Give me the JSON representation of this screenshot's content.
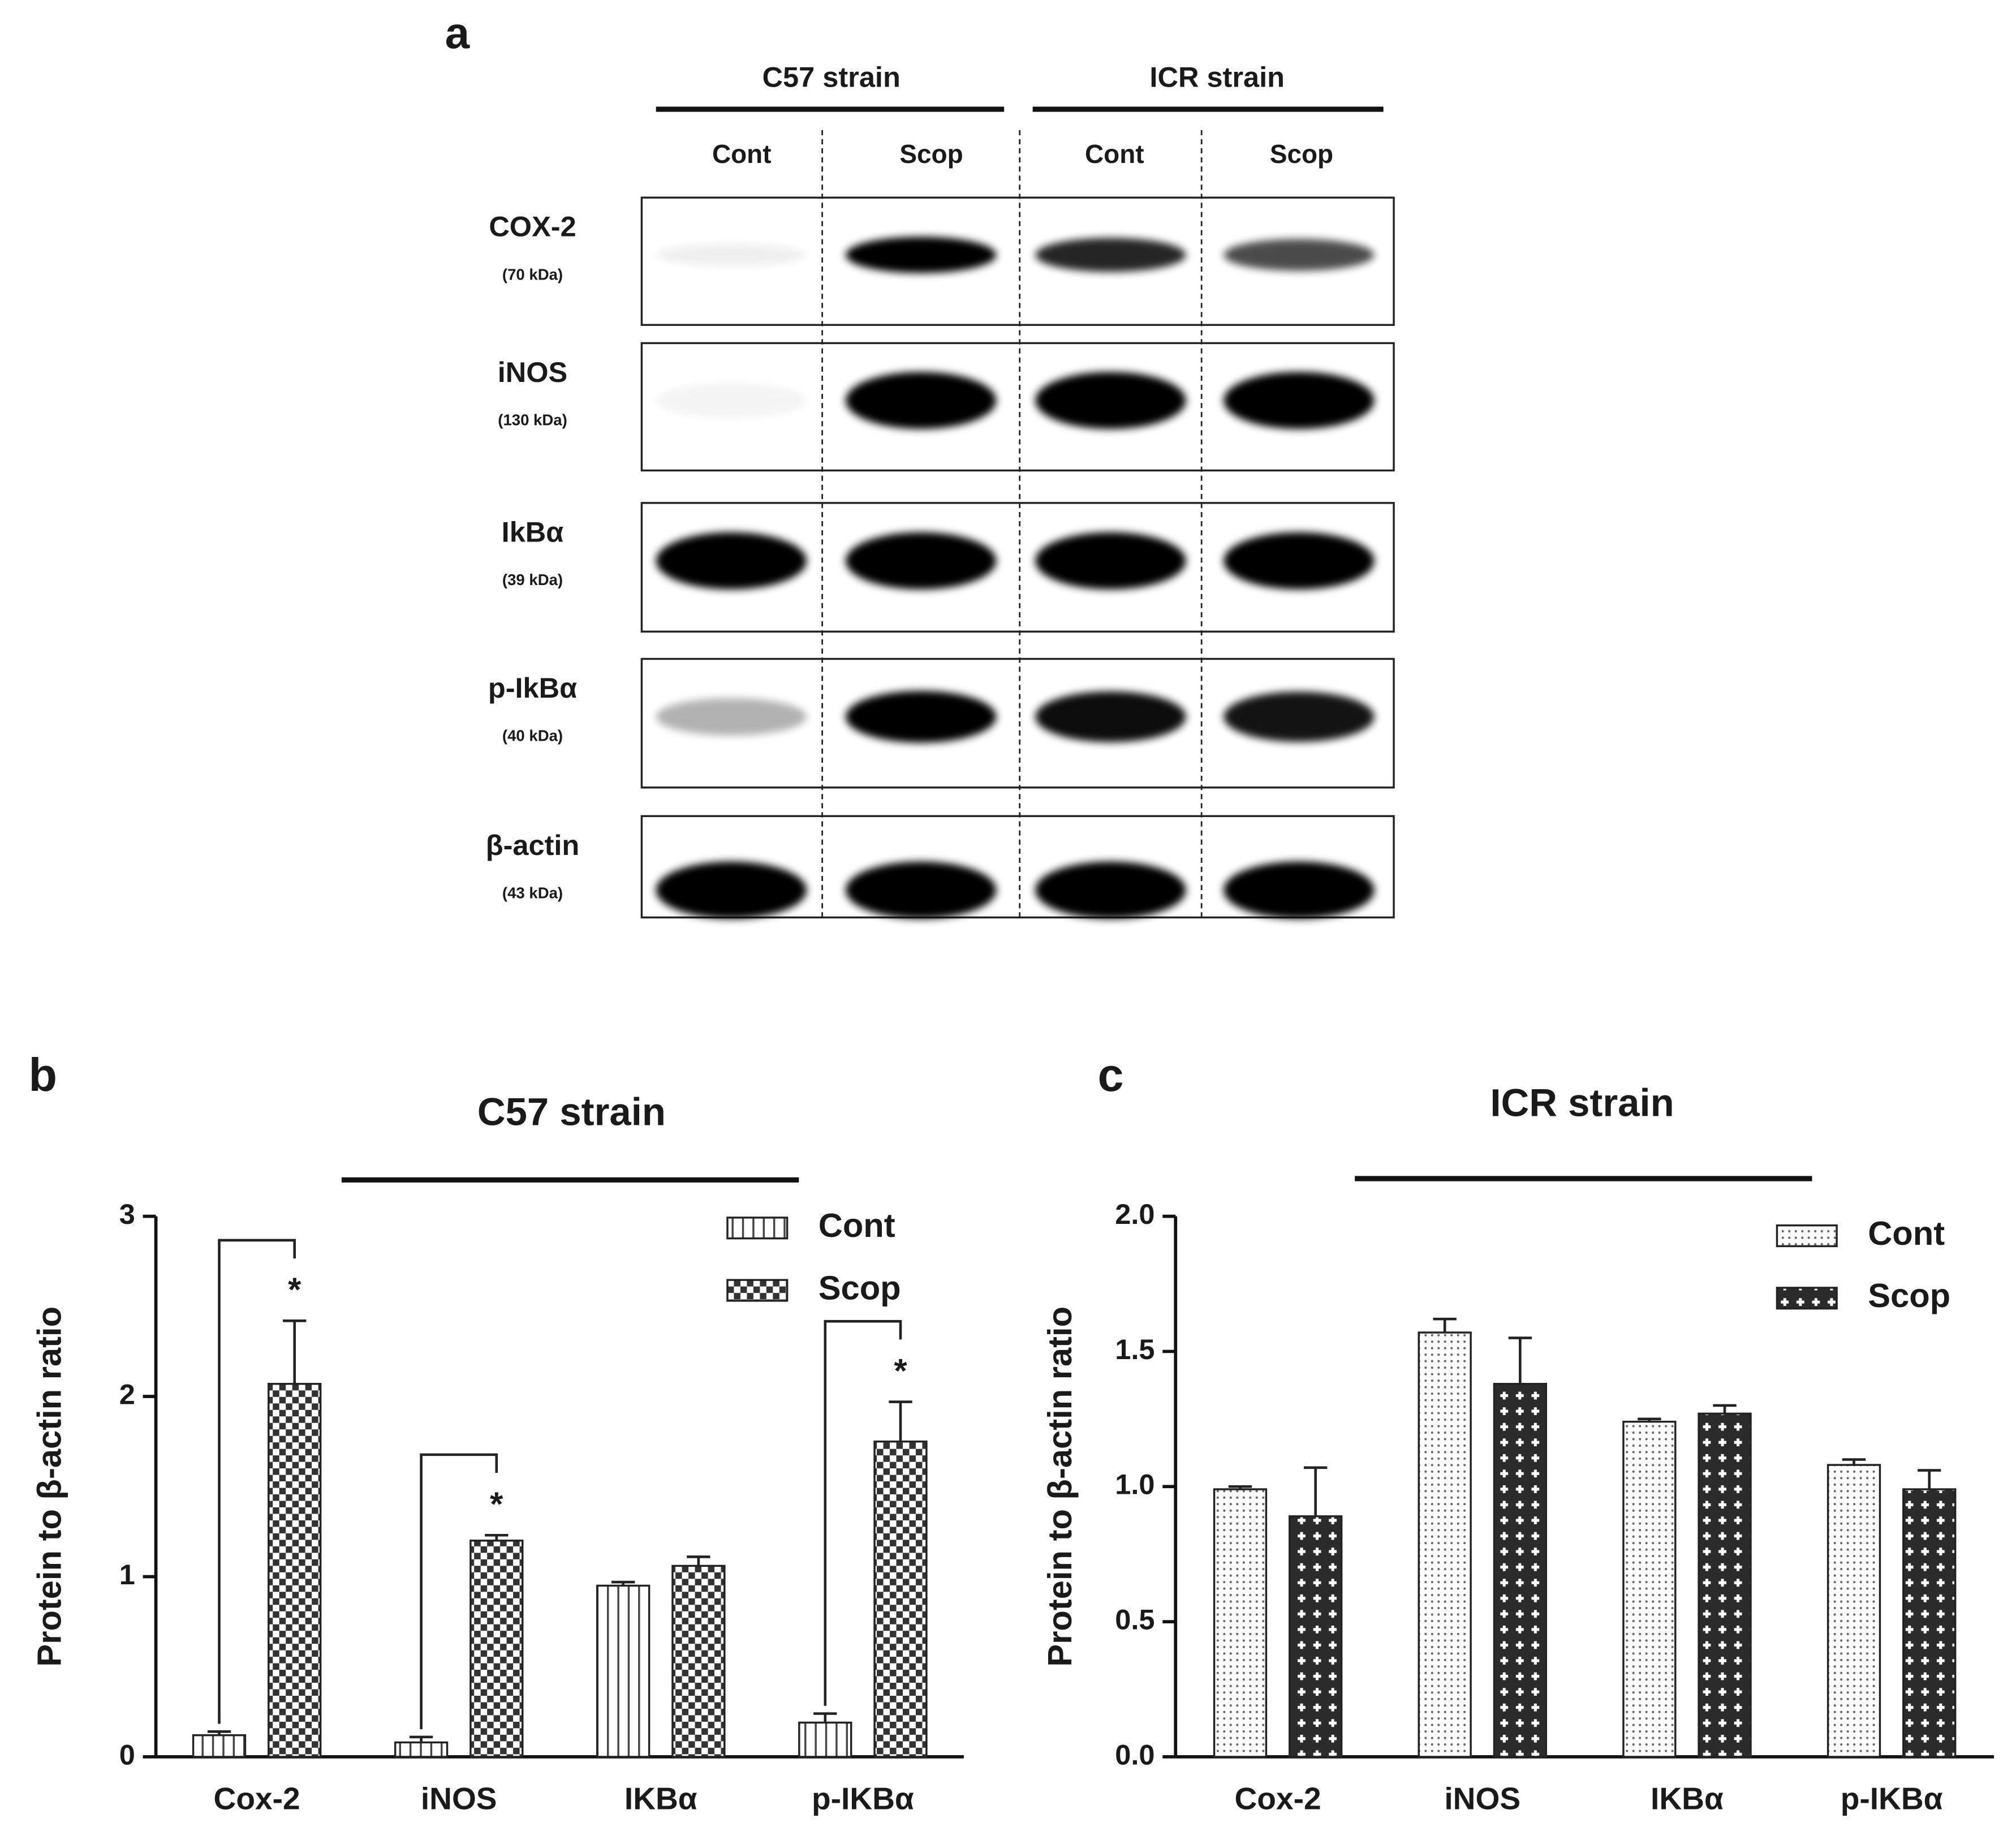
{
  "blot": {
    "panel": "a",
    "groups": [
      "C57 strain",
      "ICR strain"
    ],
    "lanes": [
      "Cont",
      "Scop",
      "Cont",
      "Scop"
    ],
    "rows": [
      {
        "protein": "COX-2",
        "size": "(70 kDa)"
      },
      {
        "protein": "iNOS",
        "size": "(130 kDa)"
      },
      {
        "protein": "IkBα",
        "size": "(39 kDa)"
      },
      {
        "protein": "p-IkBα",
        "size": "(40 kDa)"
      },
      {
        "protein": "β-actin",
        "size": "(43 kDa)"
      }
    ]
  },
  "chart_data": [
    {
      "type": "bar",
      "panel": "b",
      "title": "C57 strain",
      "y_label": "Protein to β-actin ratio",
      "categories": [
        "Cox-2",
        "iNOS",
        "IKBα",
        "p-IKBα"
      ],
      "series": [
        {
          "name": "Cont",
          "pattern": "vertical-stripes",
          "values": [
            0.12,
            0.08,
            0.95,
            0.19
          ],
          "errors": [
            0.02,
            0.03,
            0.02,
            0.05
          ]
        },
        {
          "name": "Scop",
          "pattern": "checker",
          "values": [
            2.07,
            1.2,
            1.06,
            1.75
          ],
          "errors": [
            0.35,
            0.03,
            0.05,
            0.22
          ]
        }
      ],
      "significance": [
        "*",
        "*",
        null,
        "*"
      ],
      "ylim": [
        0,
        3
      ],
      "yticks": [
        0,
        1,
        2,
        3
      ],
      "legend": "upper right"
    },
    {
      "type": "bar",
      "panel": "c",
      "title": "ICR strain",
      "y_label": "Protein to β-actin ratio",
      "categories": [
        "Cox-2",
        "iNOS",
        "IKBα",
        "p-IKBα"
      ],
      "series": [
        {
          "name": "Cont",
          "pattern": "dots",
          "values": [
            0.99,
            1.57,
            1.24,
            1.08
          ],
          "errors": [
            0.01,
            0.05,
            0.01,
            0.02
          ]
        },
        {
          "name": "Scop",
          "pattern": "crosses",
          "values": [
            0.89,
            1.38,
            1.27,
            0.99
          ],
          "errors": [
            0.18,
            0.17,
            0.03,
            0.07
          ]
        }
      ],
      "ylim": [
        0,
        2
      ],
      "yticks": [
        {
          "value": 0,
          "label": "0.0"
        },
        0.5,
        {
          "value": 1,
          "label": "1.0"
        },
        1.5,
        {
          "value": 2,
          "label": "2.0"
        }
      ],
      "legend": "upper right"
    }
  ]
}
